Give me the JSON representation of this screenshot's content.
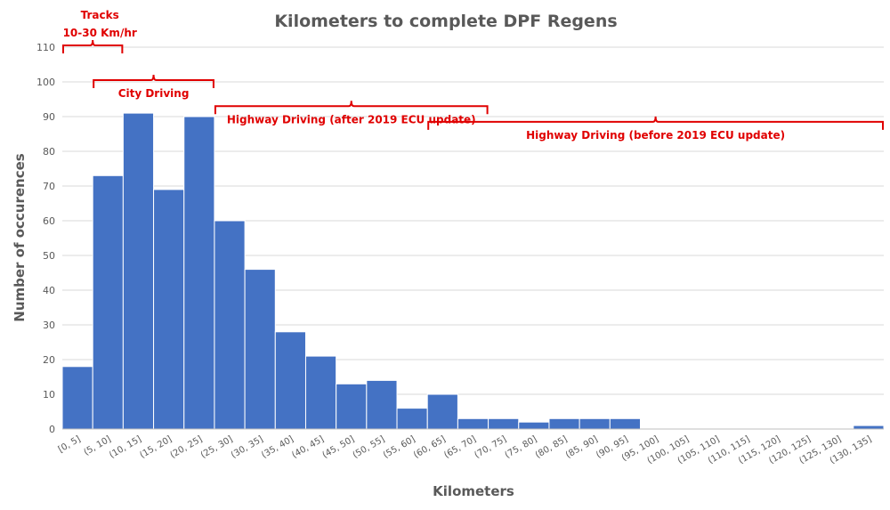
{
  "chart_data": {
    "type": "bar",
    "title": "Kilometers to complete DPF Regens",
    "xlabel": "Kilometers",
    "ylabel": "Number of occurences",
    "ylim": [
      0,
      110
    ],
    "yticks": [
      0,
      10,
      20,
      30,
      40,
      50,
      60,
      70,
      80,
      90,
      100,
      110
    ],
    "grid": true,
    "bar_color": "#4472c4",
    "categories": [
      "[0, 5]",
      "(5, 10]",
      "(10, 15]",
      "(15, 20]",
      "(20, 25]",
      "(25, 30]",
      "(30, 35]",
      "(35, 40]",
      "(40, 45]",
      "(45, 50]",
      "(50, 55]",
      "(55, 60]",
      "(60, 65]",
      "(65, 70]",
      "(70, 75]",
      "(75, 80]",
      "(80, 85]",
      "(85, 90]",
      "(90, 95]",
      "(95, 100]",
      "(100, 105]",
      "(105, 110]",
      "(110, 115]",
      "(115, 120]",
      "(120, 125]",
      "(125, 130]",
      "(130, 135]"
    ],
    "values": [
      18,
      73,
      91,
      69,
      90,
      60,
      46,
      28,
      21,
      13,
      14,
      6,
      10,
      3,
      3,
      2,
      3,
      3,
      3,
      0,
      0,
      0,
      0,
      0,
      0,
      0,
      1
    ],
    "annotation_color": "#e00000",
    "annotations": [
      {
        "lines": [
          "Tracks",
          "10-30 Km/hr"
        ],
        "from_bin": 0,
        "to_bin": 2,
        "level": 110.5
      },
      {
        "lines": [
          "City Driving"
        ],
        "from_bin": 1,
        "to_bin": 5,
        "level": 100.5
      },
      {
        "lines": [
          "Highway Driving (after 2019 ECU update)"
        ],
        "from_bin": 5,
        "to_bin": 14,
        "level": 93
      },
      {
        "lines": [
          "Highway Driving (before 2019 ECU update)"
        ],
        "from_bin": 12,
        "to_bin": 27,
        "level": 88.5
      }
    ]
  }
}
